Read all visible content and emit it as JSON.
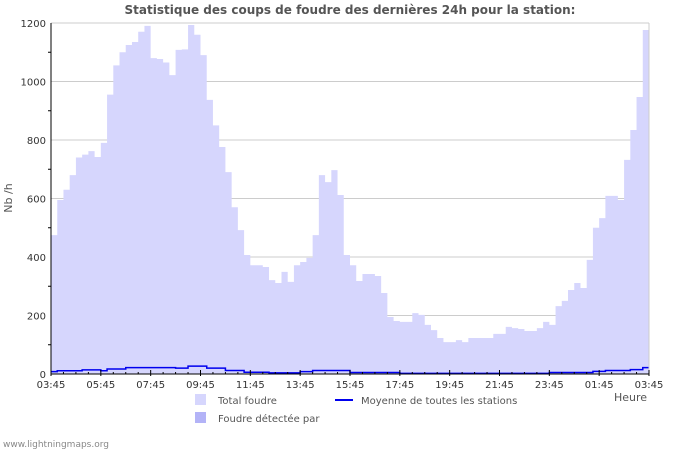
{
  "chart_data": {
    "type": "area",
    "title": "Statistique des coups de foudre des dernières 24h pour la station:",
    "xlabel": "Heure",
    "ylabel": "Nb /h",
    "ylim": [
      0,
      1200
    ],
    "yticks": [
      "0",
      "200",
      "400",
      "600",
      "800",
      "1000",
      "1200"
    ],
    "xticks": [
      "03:45",
      "05:45",
      "07:45",
      "09:45",
      "11:45",
      "13:45",
      "15:45",
      "17:45",
      "19:45",
      "21:45",
      "23:45",
      "01:45",
      "03:45"
    ],
    "bin_minutes": 15,
    "grid": true,
    "legend_placement": "bottom",
    "series": [
      {
        "name": "Total foudre",
        "color": "#d6d6fd",
        "kind": "area",
        "values": [
          475,
          595,
          630,
          680,
          740,
          750,
          762,
          742,
          790,
          955,
          1055,
          1100,
          1125,
          1135,
          1170,
          1190,
          1080,
          1077,
          1065,
          1022,
          1108,
          1110,
          1193,
          1160,
          1090,
          937,
          850,
          776,
          690,
          570,
          492,
          407,
          372,
          372,
          366,
          321,
          311,
          349,
          315,
          372,
          383,
          397,
          475,
          680,
          656,
          697,
          612,
          407,
          372,
          318,
          342,
          342,
          335,
          277,
          195,
          181,
          178,
          178,
          208,
          202,
          168,
          150,
          123,
          109,
          109,
          116,
          109,
          123,
          123,
          123,
          123,
          137,
          137,
          161,
          157,
          154,
          147,
          147,
          157,
          178,
          168,
          232,
          250,
          287,
          311,
          294,
          390,
          500,
          533,
          609,
          609,
          595,
          732,
          834,
          947,
          1176
        ]
      },
      {
        "name": "Moyenne de toutes les stations",
        "color": "#0000ee",
        "kind": "line",
        "values": [
          8,
          11,
          11,
          11,
          11,
          14,
          14,
          14,
          11,
          17,
          17,
          17,
          22,
          22,
          22,
          22,
          22,
          22,
          22,
          22,
          20,
          20,
          27,
          27,
          27,
          20,
          20,
          20,
          12,
          12,
          12,
          6,
          6,
          6,
          6,
          4,
          4,
          4,
          4,
          4,
          8,
          8,
          12,
          12,
          12,
          12,
          12,
          12,
          5,
          5,
          5,
          5,
          5,
          5,
          5,
          5,
          2,
          2,
          2,
          2,
          2,
          2,
          2,
          2,
          2,
          2,
          2,
          2,
          2,
          2,
          2,
          2,
          2,
          2,
          2,
          2,
          2,
          2,
          2,
          2,
          5,
          5,
          5,
          5,
          5,
          5,
          5,
          9,
          9,
          12,
          12,
          12,
          12,
          15,
          15,
          22
        ]
      },
      {
        "name": "Foudre détectée par",
        "color": "#b3b3f7",
        "kind": "area",
        "values": []
      }
    ]
  },
  "footer": "www.lightningmaps.org"
}
